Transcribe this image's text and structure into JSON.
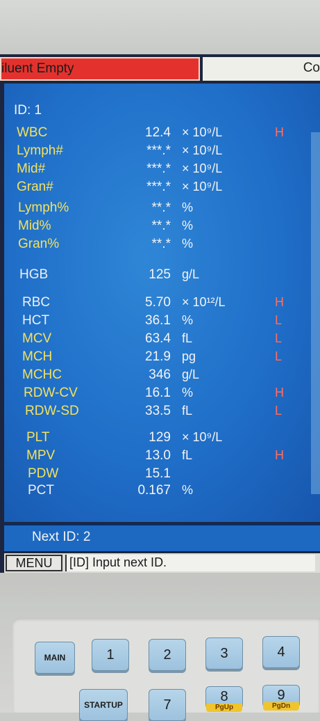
{
  "header": {
    "alarm_text": "iluent Empty",
    "right_text": "Co"
  },
  "sample": {
    "id_label": "ID: 1"
  },
  "results": [
    {
      "name": "WBC",
      "value": "12.4",
      "unit": "× 10⁹/L",
      "flag": "H",
      "color": "yellow"
    },
    {
      "name": "Lymph#",
      "value": "***.*",
      "unit": "× 10⁹/L",
      "flag": "",
      "color": "yellow"
    },
    {
      "name": "Mid#",
      "value": "***.*",
      "unit": "× 10⁹/L",
      "flag": "",
      "color": "yellow"
    },
    {
      "name": "Gran#",
      "value": "***.*",
      "unit": "× 10⁹/L",
      "flag": "",
      "color": "yellow"
    },
    {
      "name": "Lymph%",
      "value": "**.*",
      "unit": "%",
      "flag": "",
      "color": "yellow"
    },
    {
      "name": "Mid%",
      "value": "**.*",
      "unit": "%",
      "flag": "",
      "color": "yellow"
    },
    {
      "name": "Gran%",
      "value": "**.*",
      "unit": "%",
      "flag": "",
      "color": "yellow"
    },
    {
      "name": "HGB",
      "value": "125",
      "unit": "g/L",
      "flag": "",
      "color": "white"
    },
    {
      "name": "RBC",
      "value": "5.70",
      "unit": "× 10¹²/L",
      "flag": "H",
      "color": "white"
    },
    {
      "name": "HCT",
      "value": "36.1",
      "unit": "%",
      "flag": "L",
      "color": "white"
    },
    {
      "name": "MCV",
      "value": "63.4",
      "unit": "fL",
      "flag": "L",
      "color": "yellow"
    },
    {
      "name": "MCH",
      "value": "21.9",
      "unit": "pg",
      "flag": "L",
      "color": "yellow"
    },
    {
      "name": "MCHC",
      "value": "346",
      "unit": "g/L",
      "flag": "",
      "color": "yellow"
    },
    {
      "name": "RDW-CV",
      "value": "16.1",
      "unit": "%",
      "flag": "H",
      "color": "yellow"
    },
    {
      "name": "RDW-SD",
      "value": "33.5",
      "unit": "fL",
      "flag": "L",
      "color": "yellow"
    },
    {
      "name": "PLT",
      "value": "129",
      "unit": "× 10⁹/L",
      "flag": "",
      "color": "yellow"
    },
    {
      "name": "MPV",
      "value": "13.0",
      "unit": "fL",
      "flag": "H",
      "color": "yellow"
    },
    {
      "name": "PDW",
      "value": "15.1",
      "unit": "",
      "flag": "",
      "color": "yellow"
    },
    {
      "name": "PCT",
      "value": "0.167",
      "unit": "%",
      "flag": "",
      "color": "white"
    }
  ],
  "footer": {
    "next_id": "Next ID: 2",
    "menu_label": "MENU",
    "hint": "[ID] Input next ID."
  },
  "keypad": {
    "main_label": "MAIN",
    "startup_label": "STARTUP",
    "keys": [
      "1",
      "2",
      "3",
      "4",
      "7",
      "8",
      "9"
    ],
    "key8_sub": "PgUp",
    "key9_sub": "PgDn"
  },
  "colors": {
    "panel_blue": "#1f6ec8",
    "alarm_red": "#e3322e",
    "param_yellow": "#f6e25a",
    "flag_red": "#ff6f61",
    "key_blue": "#9dc2de"
  }
}
